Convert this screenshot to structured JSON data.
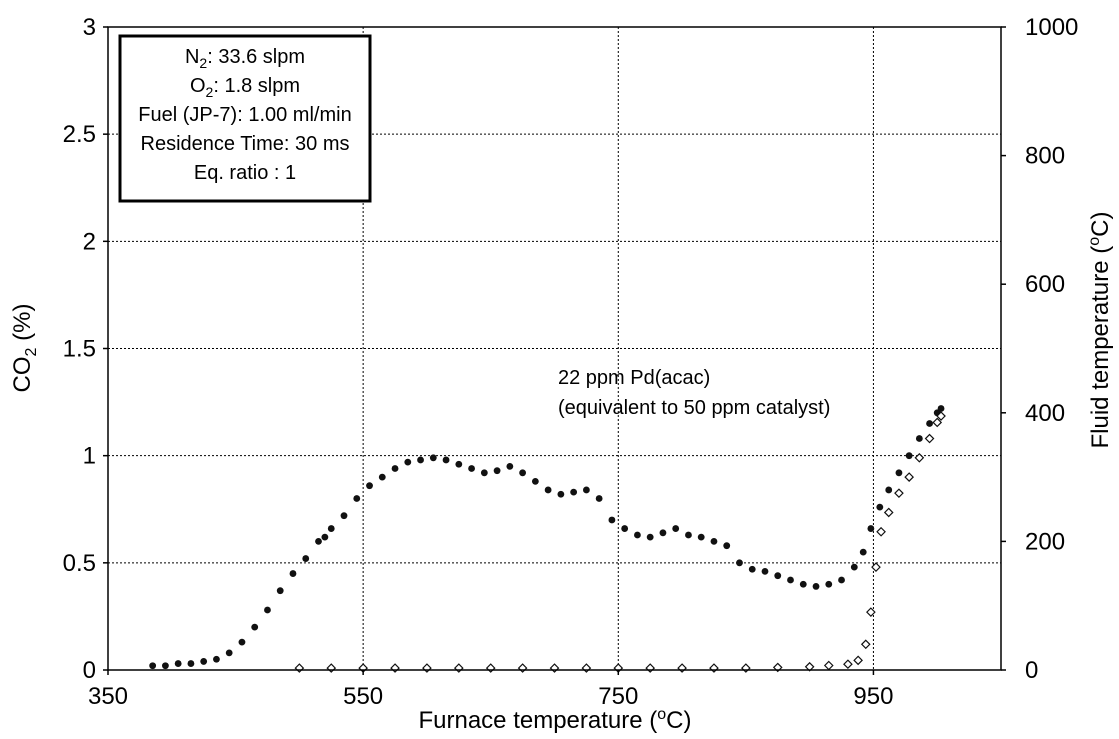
{
  "chart_data": {
    "type": "scatter",
    "title": "",
    "xlabel": "Furnace temperature (°C)",
    "xlabel_parts": {
      "pre": "Furnace temperature (",
      "sup": "o",
      "post": "C)"
    },
    "ylabel": "CO2 (%)",
    "ylabel_parts": {
      "pre": "CO",
      "sub": "2",
      "post": " (%)"
    },
    "y2label": "Fluid temperature (°C)",
    "y2label_parts": {
      "pre": "Fluid temperature (",
      "sup": "o",
      "post": "C)"
    },
    "xlim": [
      350,
      1050
    ],
    "ylim": [
      0,
      3
    ],
    "y2lim": [
      0,
      1000
    ],
    "xticks": [
      "350",
      "550",
      "750",
      "950"
    ],
    "xtick_values": [
      350,
      550,
      750,
      950
    ],
    "yticks": [
      "0",
      "0.5",
      "1",
      "1.5",
      "2",
      "2.5",
      "3"
    ],
    "ytick_values": [
      0,
      0.5,
      1,
      1.5,
      2,
      2.5,
      3
    ],
    "y2ticks": [
      "0",
      "200",
      "400",
      "600",
      "800",
      "1000"
    ],
    "y2tick_values": [
      0,
      200,
      400,
      600,
      800,
      1000
    ],
    "grid": true,
    "info_box": {
      "lines": [
        {
          "pre": "N",
          "sub": "2",
          "post": ": 33.6 slpm"
        },
        {
          "pre": "O",
          "sub": "2",
          "post": ": 1.8 slpm"
        },
        {
          "pre": "Fuel (JP-7): 1.00 ml/min",
          "sub": "",
          "post": ""
        },
        {
          "pre": "Residence Time: 30 ms",
          "sub": "",
          "post": ""
        },
        {
          "pre": "Eq. ratio : 1",
          "sub": "",
          "post": ""
        }
      ]
    },
    "annotation": [
      "22 ppm Pd(acac)",
      "(equivalent to 50 ppm catalyst)"
    ],
    "series": [
      {
        "marker": "filled-dot",
        "color": "#111111",
        "x": [
          385,
          395,
          405,
          415,
          425,
          435,
          445,
          455,
          465,
          475,
          485,
          495,
          505,
          515,
          520,
          525,
          535,
          545,
          555,
          565,
          575,
          585,
          595,
          605,
          615,
          625,
          635,
          645,
          655,
          665,
          675,
          685,
          695,
          705,
          715,
          725,
          735,
          745,
          755,
          765,
          775,
          785,
          795,
          805,
          815,
          825,
          835,
          845,
          855,
          865,
          875,
          885,
          895,
          905,
          915,
          925,
          935,
          942,
          948,
          955,
          962,
          970,
          978,
          986,
          994,
          1000,
          1003
        ],
        "y": [
          0.02,
          0.02,
          0.03,
          0.03,
          0.04,
          0.05,
          0.08,
          0.13,
          0.2,
          0.28,
          0.37,
          0.45,
          0.52,
          0.6,
          0.62,
          0.66,
          0.72,
          0.8,
          0.86,
          0.9,
          0.94,
          0.97,
          0.98,
          0.99,
          0.98,
          0.96,
          0.94,
          0.92,
          0.93,
          0.95,
          0.92,
          0.88,
          0.84,
          0.82,
          0.83,
          0.84,
          0.8,
          0.7,
          0.66,
          0.63,
          0.62,
          0.64,
          0.66,
          0.63,
          0.62,
          0.6,
          0.58,
          0.5,
          0.47,
          0.46,
          0.44,
          0.42,
          0.4,
          0.39,
          0.4,
          0.42,
          0.48,
          0.55,
          0.66,
          0.76,
          0.84,
          0.92,
          1.0,
          1.08,
          1.15,
          1.2,
          1.22
        ]
      },
      {
        "marker": "open-diamond",
        "color": "#111111",
        "axis": "right",
        "x": [
          500,
          525,
          550,
          575,
          600,
          625,
          650,
          675,
          700,
          725,
          750,
          775,
          800,
          825,
          850,
          875,
          900,
          915,
          930,
          938,
          944,
          948,
          952,
          956,
          962,
          970,
          978,
          986,
          994,
          1000,
          1003
        ],
        "y": [
          3,
          3,
          3,
          3,
          3,
          3,
          3,
          3,
          3,
          3,
          3,
          3,
          3,
          3,
          3,
          4,
          5,
          7,
          9,
          15,
          40,
          90,
          160,
          215,
          245,
          275,
          300,
          330,
          360,
          385,
          395
        ]
      }
    ]
  }
}
